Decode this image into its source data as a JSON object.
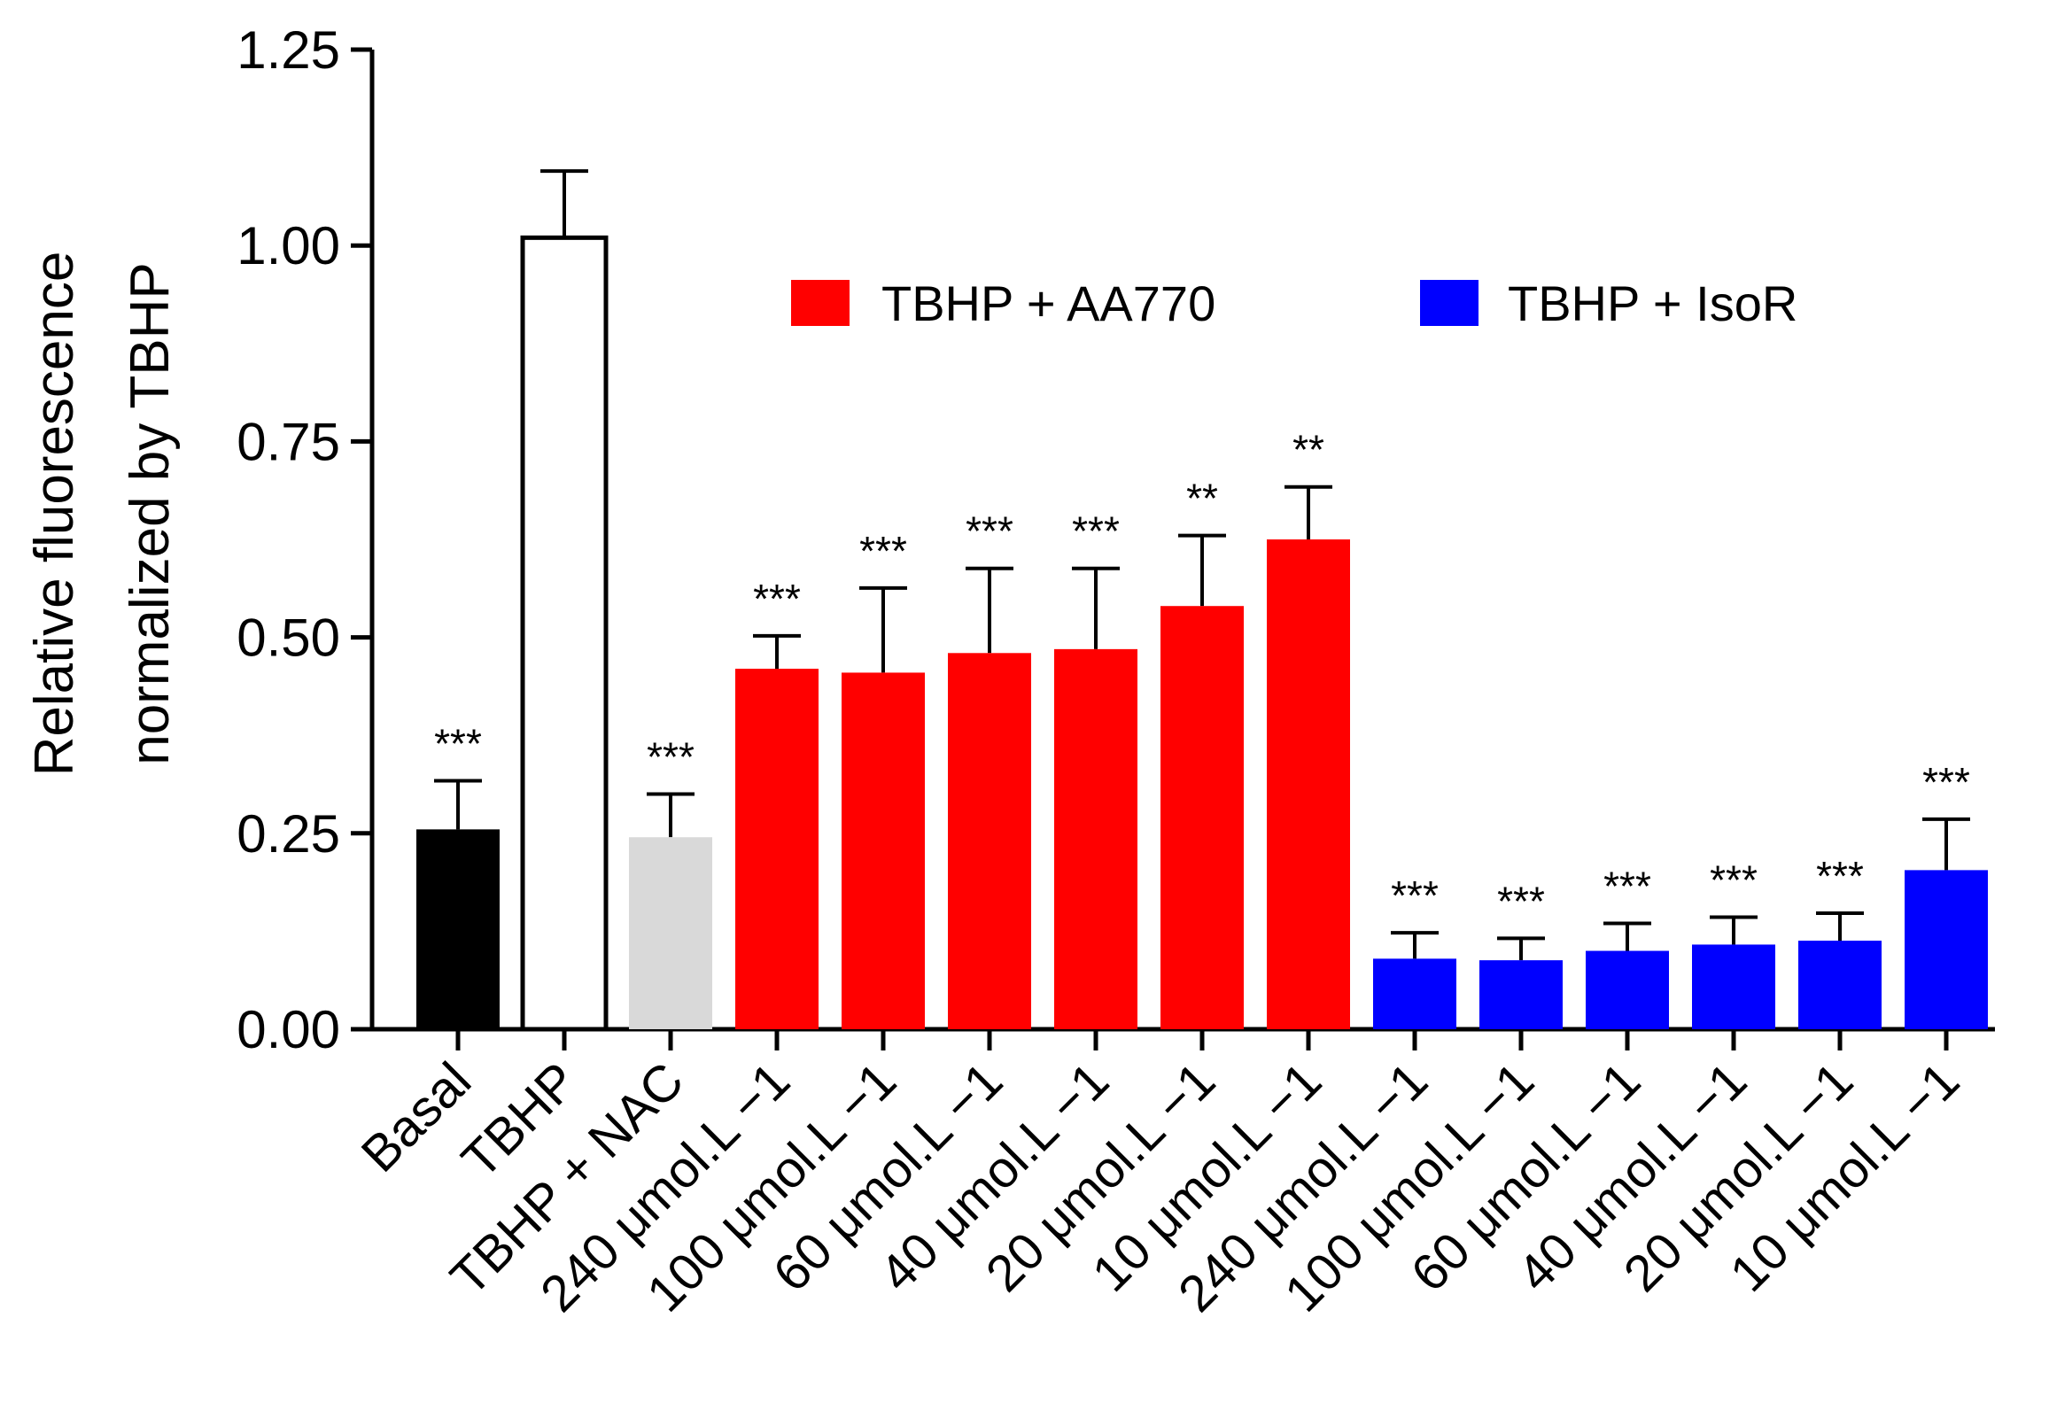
{
  "chart_data": {
    "type": "bar",
    "ylabel_line1": "Relative fluorescence",
    "ylabel_line2": "normalized by TBHP",
    "xlabel": "",
    "ylim": [
      0,
      1.25
    ],
    "yticks": [
      "0.00",
      "0.25",
      "0.50",
      "0.75",
      "1.00",
      "1.25"
    ],
    "ytick_values": [
      0,
      0.25,
      0.5,
      0.75,
      1.0,
      1.25
    ],
    "categories": [
      "Basal",
      "TBHP",
      "TBHP + NAC",
      "240 μmol.L −1",
      "100 μmol.L −1",
      "60 μmol.L −1",
      "40 μmol.L −1",
      "20 μmol.L −1",
      "10 μmol.L −1",
      "240 μmol.L −1",
      "100 μmol.L −1",
      "60 μmol.L −1",
      "40 μmol.L −1",
      "20 μmol.L −1",
      "10 μmol.L −1"
    ],
    "values": [
      0.255,
      1.01,
      0.245,
      0.46,
      0.455,
      0.48,
      0.485,
      0.54,
      0.625,
      0.09,
      0.088,
      0.1,
      0.108,
      0.113,
      0.203
    ],
    "errors": [
      0.062,
      0.085,
      0.055,
      0.042,
      0.108,
      0.108,
      0.103,
      0.09,
      0.067,
      0.033,
      0.028,
      0.035,
      0.035,
      0.035,
      0.065
    ],
    "significance": [
      "***",
      "",
      "***",
      "***",
      "***",
      "***",
      "***",
      "**",
      "**",
      "***",
      "***",
      "***",
      "***",
      "***",
      "***"
    ],
    "groups": [
      "basal",
      "tbhp",
      "nac",
      "aa770",
      "aa770",
      "aa770",
      "aa770",
      "aa770",
      "aa770",
      "isor",
      "isor",
      "isor",
      "isor",
      "isor",
      "isor"
    ],
    "colors": {
      "basal": "#000000",
      "tbhp": "#ffffff",
      "nac": "#d9d9d9",
      "aa770": "#ff0000",
      "isor": "#0000ff"
    },
    "legend": [
      {
        "label": "TBHP + AA770",
        "color": "#ff0000"
      },
      {
        "label": "TBHP + IsoR",
        "color": "#0000ff"
      }
    ]
  }
}
